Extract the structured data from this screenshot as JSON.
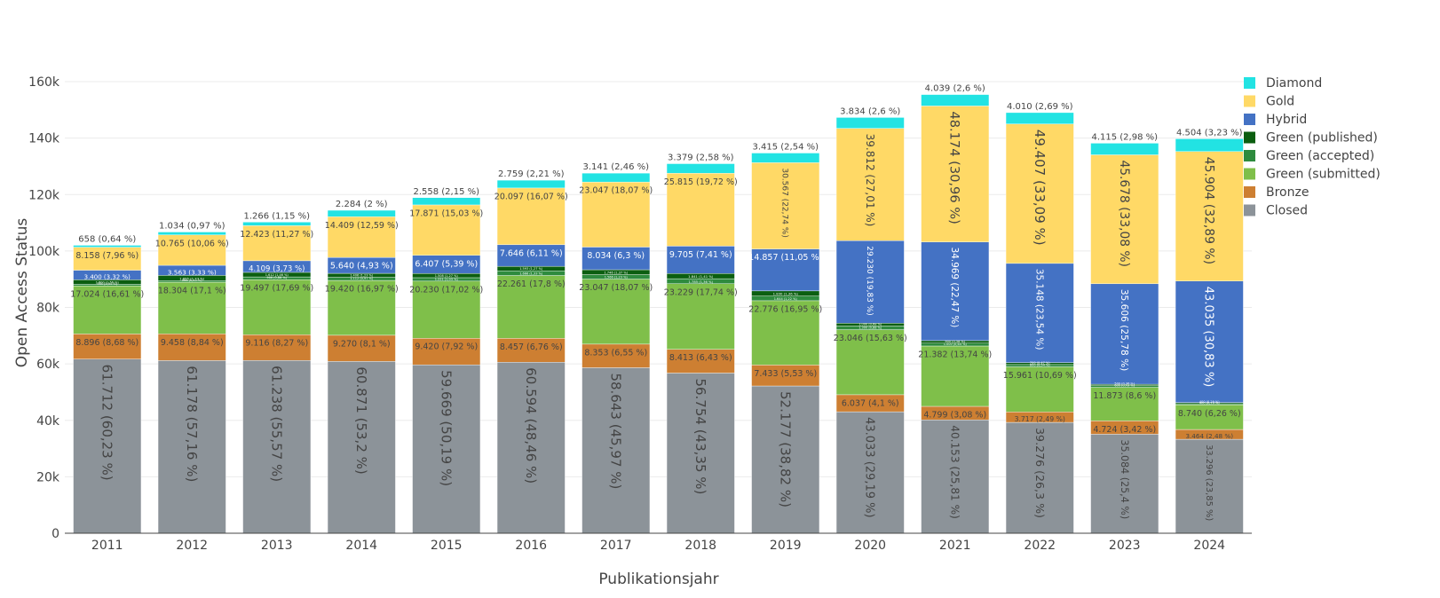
{
  "chart_data": {
    "type": "bar",
    "stacked": true,
    "title": "",
    "xlabel": "Publikationsjahr",
    "ylabel": "Open Access Status",
    "ylim": [
      0,
      165000
    ],
    "yticks": [
      0,
      20000,
      40000,
      60000,
      80000,
      100000,
      120000,
      140000,
      160000
    ],
    "ytick_labels": [
      "0",
      "20k",
      "40k",
      "60k",
      "80k",
      "100k",
      "120k",
      "140k",
      "160k"
    ],
    "grid": true,
    "legend_position": "right",
    "categories": [
      "2011",
      "2012",
      "2013",
      "2014",
      "2015",
      "2016",
      "2017",
      "2018",
      "2019",
      "2020",
      "2021",
      "2022",
      "2023",
      "2024"
    ],
    "series": [
      {
        "name": "Closed",
        "color": "#8c9399",
        "values": [
          61712,
          61178,
          61238,
          60871,
          59669,
          60594,
          58643,
          56754,
          52177,
          43033,
          40153,
          39276,
          35084,
          33296
        ],
        "labels": [
          "61.712 (60,23 %)",
          "61.178 (57,16 %)",
          "61.238 (55,57 %)",
          "60.871 (53,2 %)",
          "59.669 (50,19 %)",
          "60.594 (48,46 %)",
          "58.643 (45,97 %)",
          "56.754 (43,35 %)",
          "52.177 (38,82 %)",
          "43.033 (29,19 %)",
          "40.153 (25,81 %)",
          "39.276 (26,3 %)",
          "35.084 (25,4 %)",
          "33.296 (23,85 %)"
        ]
      },
      {
        "name": "Bronze",
        "color": "#cd7f32",
        "values": [
          8896,
          9458,
          9116,
          9270,
          9420,
          8457,
          8353,
          8413,
          7433,
          6037,
          4799,
          3717,
          4724,
          3464
        ],
        "labels": [
          "8.896 (8,68 %)",
          "9.458 (8,84 %)",
          "9.116 (8,27 %)",
          "9.270 (8,1 %)",
          "9.420 (7,92 %)",
          "8.457 (6,76 %)",
          "8.353 (6,55 %)",
          "8.413 (6,43 %)",
          "7.433 (5,53 %)",
          "6.037 (4,1 %)",
          "4.799 (3,08 %)",
          "3.717 (2,49 %)",
          "4.724 (3,42 %)",
          "3.464 (2,48 %)"
        ]
      },
      {
        "name": "Green (submitted)",
        "color": "#7fbf4a",
        "values": [
          17024,
          18304,
          19497,
          19420,
          20230,
          22261,
          23047,
          23229,
          22776,
          23046,
          21382,
          15961,
          11873,
          8740
        ],
        "labels": [
          "17.024 (16,61 %)",
          "18.304 (17,1 %)",
          "19.497 (17,69 %)",
          "19.420 (16,97 %)",
          "20.230 (17,02 %)",
          "22.261 (17,8 %)",
          "23.047 (18,07 %)",
          "23.229 (17,74 %)",
          "22.776 (16,95 %)",
          "23.046 (15,63 %)",
          "21.382 (13,74 %)",
          "15.961 (10,69 %)",
          "11.873 (8,6 %)",
          "8.740 (6,26 %)"
        ]
      },
      {
        "name": "Green (accepted)",
        "color": "#2e8b3e",
        "values": [
          560,
          566,
          966,
          1112,
          1221,
          1666,
          1566,
          1785,
          1644,
          1300,
          1000,
          800,
          600,
          400
        ],
        "labels": [
          "560 (0,55 %)",
          "566 (0,53 %)",
          "966 (0,88 %)",
          "1.112 (0,97 %)",
          "1.221 (1,03 %)",
          "1.666 (1,33 %)",
          "1.566 (1,23 %)",
          "1.785 (1,36 %)",
          "1.644 (1,22 %)",
          "1.300 (0,88 %)",
          "1.000 (0,64 %)",
          "800 (0,54 %)",
          "600 (0,43 %)",
          "400 (0,29 %)"
        ]
      },
      {
        "name": "Green (published)",
        "color": "#0b5e10",
        "values": [
          1600,
          1855,
          1612,
          1406,
          1508,
          1593,
          1746,
          1841,
          1830,
          1000,
          900,
          700,
          500,
          400
        ],
        "labels": [
          "1.600 (1,56 %)",
          "1.855 (1,73 %)",
          "1.612 (1,46 %)",
          "1.406 (1,23 %)",
          "1.508 (1,27 %)",
          "1.593 (1,27 %)",
          "1.746 (1,37 %)",
          "1.841 (1,41 %)",
          "1.830 (1,36 %)",
          "1.000 (0,68 %)",
          "900 (0,58 %)",
          "700 (0,47 %)",
          "500 (0,36 %)",
          "400 (0,29 %)"
        ]
      },
      {
        "name": "Hybrid",
        "color": "#4472c4",
        "values": [
          3400,
          3563,
          4109,
          5640,
          6407,
          7646,
          8034,
          9705,
          14857,
          29230,
          34969,
          35148,
          35606,
          43035
        ],
        "labels": [
          "3.400 (3,32 %)",
          "3.563 (3,33 %)",
          "4.109 (3,73 %)",
          "5.640 (4,93 %)",
          "6.407 (5,39 %)",
          "7.646 (6,11 %)",
          "8.034 (6,3 %)",
          "9.705 (7,41 %)",
          "14.857 (11,05 %)",
          "29.230 (19,83 %)",
          "34.969 (22,47 %)",
          "35.148 (23,54 %)",
          "35.606 (25,78 %)",
          "43.035 (30,83 %)"
        ]
      },
      {
        "name": "Gold",
        "color": "#ffd966",
        "values": [
          8158,
          10765,
          12423,
          14409,
          17871,
          20097,
          23047,
          25815,
          30567,
          39812,
          48174,
          49407,
          45678,
          45904
        ],
        "labels": [
          "8.158 (7,96 %)",
          "10.765 (10,06 %)",
          "12.423 (11,27 %)",
          "14.409 (12,59 %)",
          "17.871 (15,03 %)",
          "20.097 (16,07 %)",
          "23.047 (18,07 %)",
          "25.815 (19,72 %)",
          "30.567 (22,74 %)",
          "39.812 (27,01 %)",
          "48.174 (30,96 %)",
          "49.407 (33,09 %)",
          "45.678 (33,08 %)",
          "45.904 (32,89 %)"
        ]
      },
      {
        "name": "Diamond",
        "color": "#22e3e3",
        "values": [
          658,
          1034,
          1266,
          2284,
          2558,
          2759,
          3141,
          3379,
          3415,
          3834,
          4039,
          4010,
          4115,
          4504
        ],
        "labels": [
          "658 (0,64 %)",
          "1.034 (0,97 %)",
          "1.266 (1,15 %)",
          "2.284 (2 %)",
          "2.558 (2,15 %)",
          "2.759 (2,21 %)",
          "3.141 (2,46 %)",
          "3.379 (2,58 %)",
          "3.415 (2,54 %)",
          "3.834 (2,6 %)",
          "4.039 (2,6 %)",
          "4.010 (2,69 %)",
          "4.115 (2,98 %)",
          "4.504 (3,23 %)"
        ]
      }
    ],
    "legend_order": [
      "Diamond",
      "Gold",
      "Hybrid",
      "Green (published)",
      "Green (accepted)",
      "Green (submitted)",
      "Bronze",
      "Closed"
    ]
  }
}
